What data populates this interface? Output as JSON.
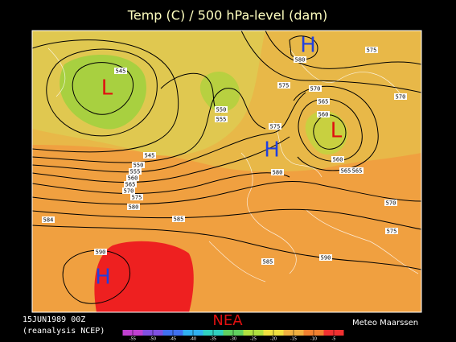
{
  "title": "Temp (C) / 500 hPa-level (dam)",
  "date": "15JUN1989 00Z",
  "source": "(reanalysis NCEP)",
  "region": "NEA",
  "credit": "Meteo Maarssen",
  "pressure_centers": [
    "L",
    "H",
    "H",
    "L",
    "H"
  ],
  "contour_labels": [
    "545",
    "575",
    "580",
    "575",
    "570",
    "570",
    "550",
    "555",
    "565",
    "560",
    "575",
    "545",
    "550",
    "555",
    "560",
    "565",
    "570",
    "575",
    "580",
    "580",
    "560",
    "565",
    "565",
    "570",
    "575",
    "584",
    "585",
    "590",
    "585",
    "590"
  ],
  "colorbar": {
    "ticks": [
      -55,
      -50,
      -45,
      -40,
      -35,
      -30,
      -25,
      -20,
      -15,
      -10,
      -5
    ],
    "colors": [
      "#c040d0",
      "#8050e0",
      "#4070f0",
      "#30b0f0",
      "#30d0c0",
      "#60d060",
      "#b0e040",
      "#f0e040",
      "#f0b040",
      "#f08030",
      "#f03030"
    ]
  }
}
